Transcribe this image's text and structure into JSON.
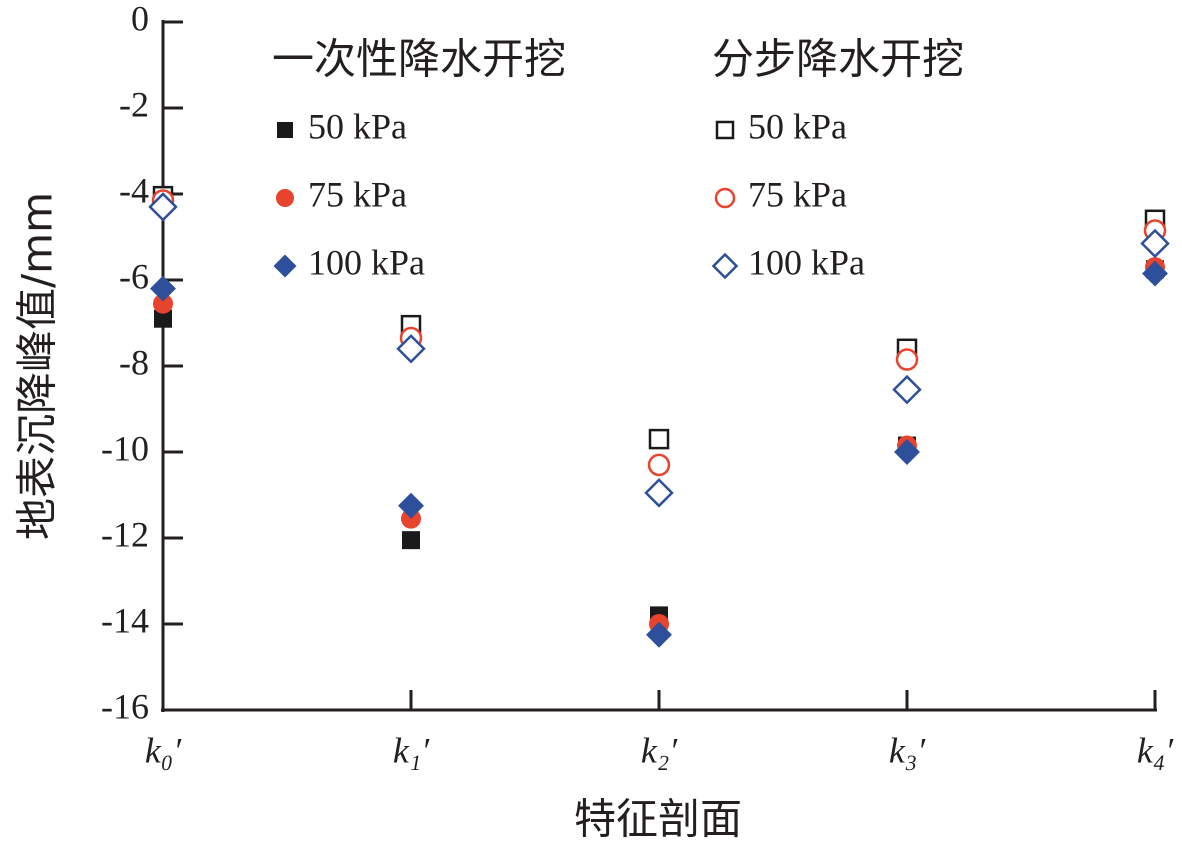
{
  "chart_data": {
    "type": "scatter",
    "x_label": "特征剖面",
    "y_label": "地表沉降峰值/mm",
    "categories": [
      "k₀′",
      "k₁′",
      "k₂′",
      "k₃′",
      "k₄′"
    ],
    "ylim": [
      -16,
      0
    ],
    "yticks": [
      0,
      -2,
      -4,
      -6,
      -8,
      -10,
      -12,
      -14,
      -16
    ],
    "groups": [
      {
        "title": "一次性降水开挖",
        "series": [
          {
            "name": "50 kPa",
            "color": "#1a1a1a",
            "marker": "square",
            "filled": true,
            "values": [
              -6.9,
              -12.05,
              -13.8,
              -9.85,
              -5.75
            ]
          },
          {
            "name": "75 kPa",
            "color": "#e8432d",
            "marker": "circle",
            "filled": true,
            "values": [
              -6.55,
              -11.55,
              -14.0,
              -9.85,
              -5.7
            ]
          },
          {
            "name": "100 kPa",
            "color": "#2e4f9a",
            "marker": "diamond",
            "filled": true,
            "values": [
              -6.2,
              -11.25,
              -14.25,
              -10.0,
              -5.85
            ]
          }
        ]
      },
      {
        "title": "分步降水开挖",
        "series": [
          {
            "name": "50 kPa",
            "color": "#1a1a1a",
            "marker": "square",
            "filled": false,
            "values": [
              -4.05,
              -7.05,
              -9.7,
              -7.6,
              -4.6
            ]
          },
          {
            "name": "75 kPa",
            "color": "#e8432d",
            "marker": "circle",
            "filled": false,
            "values": [
              -4.15,
              -7.35,
              -10.3,
              -7.85,
              -4.85
            ]
          },
          {
            "name": "100 kPa",
            "color": "#2e4f9a",
            "marker": "diamond",
            "filled": false,
            "values": [
              -4.3,
              -7.6,
              -10.95,
              -8.55,
              -5.15
            ]
          }
        ]
      }
    ]
  }
}
